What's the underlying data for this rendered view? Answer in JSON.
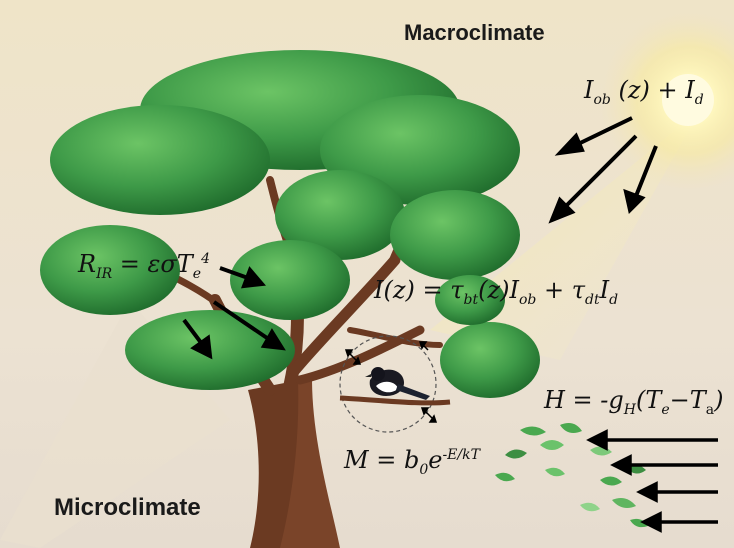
{
  "titles": {
    "macro": "Macroclimate",
    "micro": "Microclimate"
  },
  "equations": {
    "solar": {
      "I": "I",
      "ob": "ob",
      "z": " (z) + ",
      "I2": "I",
      "d": "d"
    },
    "ir": {
      "R": "R",
      "IR": "IR",
      "rest": " = εσT",
      "e": "e",
      "four": "4"
    },
    "transmitted": {
      "a": "I(z) = τ",
      "bt": "bt",
      "b": "(z)I",
      "ob": "ob",
      "c": " + τ",
      "dt": "dt",
      "d": "I",
      "dsub": "d"
    },
    "metabolic": {
      "a": "M = b",
      "zero": "0",
      "b": "e",
      "exp": "-E/kT"
    },
    "convective": {
      "a": "H = -g",
      "H": "H",
      "b": "(T",
      "e": "e",
      "c": "−T",
      "as": "a",
      "d": ")"
    }
  },
  "colors": {
    "sky_top": "#efe3c9",
    "sky_bottom": "#e9ded0",
    "foliage": "#3f9a48",
    "foliage_dark": "#1f6b2c",
    "trunk": "#6e3b22",
    "arrow": "#000000",
    "sun": "#fff6b0"
  }
}
